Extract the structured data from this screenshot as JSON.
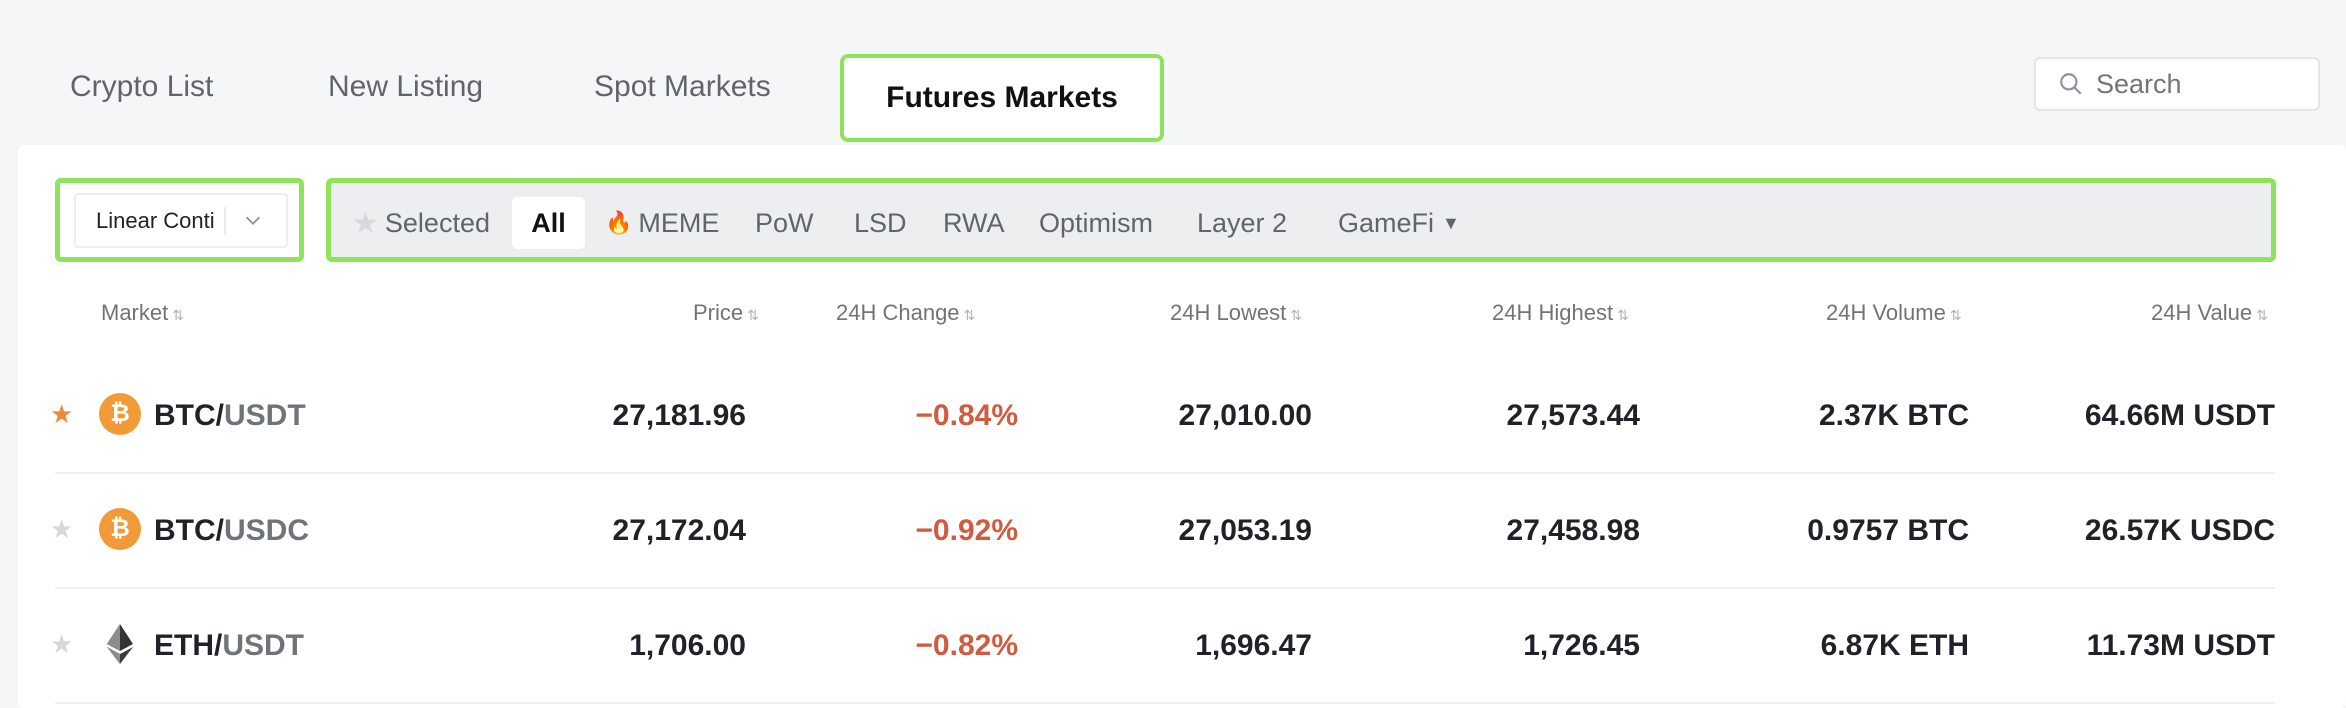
{
  "tabs": [
    {
      "label": "Crypto List"
    },
    {
      "label": "New Listing"
    },
    {
      "label": "Spot Markets"
    },
    {
      "label": "Futures Markets",
      "active": true
    }
  ],
  "search": {
    "placeholder": "Search",
    "icon": "search-icon"
  },
  "contract_select": {
    "value": "Linear Conti",
    "icon": "chevron-down-icon"
  },
  "filters": {
    "selected_label": "Selected",
    "items": [
      "All",
      "MEME",
      "PoW",
      "LSD",
      "RWA",
      "Optimism",
      "Layer 2",
      "GameFi"
    ],
    "active": "All"
  },
  "table": {
    "headers": [
      "Market",
      "Price",
      "24H Change",
      "24H Lowest",
      "24H Highest",
      "24H Volume",
      "24H Value"
    ],
    "rows": [
      {
        "base": "BTC",
        "quote": "USDT",
        "starred": true,
        "price": "27,181.96",
        "change": "−0.84%",
        "low": "27,010.00",
        "high": "27,573.44",
        "volume": "2.37K BTC",
        "value": "64.66M USDT"
      },
      {
        "base": "BTC",
        "quote": "USDC",
        "starred": false,
        "price": "27,172.04",
        "change": "−0.92%",
        "low": "27,053.19",
        "high": "27,458.98",
        "volume": "0.9757 BTC",
        "value": "26.57K USDC"
      },
      {
        "base": "ETH",
        "quote": "USDT",
        "starred": false,
        "price": "1,706.00",
        "change": "−0.82%",
        "low": "1,696.47",
        "high": "1,726.45",
        "volume": "6.87K ETH",
        "value": "11.73M USDT"
      }
    ]
  },
  "colors": {
    "accent_outline": "#8ee35a",
    "negative": "#d15a3f",
    "star_active": "#f0883a",
    "btc": "#f29a38"
  }
}
